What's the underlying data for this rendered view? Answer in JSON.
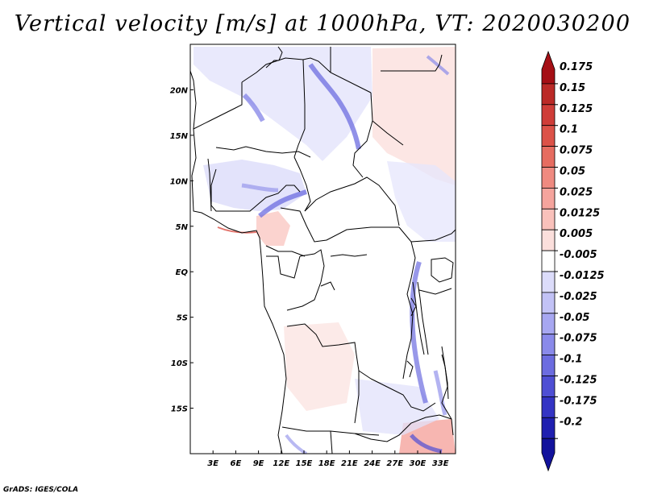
{
  "title": "Vertical velocity [m/s] at 1000hPa, VT: 2020030200",
  "credit": "GrADS: IGES/COLA",
  "map": {
    "lon_labels": [
      "3E",
      "6E",
      "9E",
      "12E",
      "15E",
      "18E",
      "21E",
      "24E",
      "27E",
      "30E",
      "33E"
    ],
    "lat_labels": [
      "20N",
      "15N",
      "10N",
      "5N",
      "EQ",
      "5S",
      "10S",
      "15S"
    ],
    "lon_values": [
      3,
      6,
      9,
      12,
      15,
      18,
      21,
      24,
      27,
      30,
      33
    ],
    "lat_values": [
      20,
      15,
      10,
      5,
      0,
      -5,
      -10,
      -15
    ],
    "lon_range": [
      0,
      35
    ],
    "lat_range": [
      -20,
      25
    ],
    "border_color": "#000000"
  },
  "chart_data": {
    "type": "heatmap",
    "title": "Vertical velocity [m/s] at 1000hPa, VT: 2020030200",
    "variable": "Vertical velocity",
    "units": "m/s",
    "level": "1000hPa",
    "valid_time": "2020030200",
    "colorbar": {
      "levels": [
        "0.175",
        "0.15",
        "0.125",
        "0.1",
        "0.075",
        "0.05",
        "0.025",
        "0.0125",
        "0.005",
        "-0.005",
        "-0.0125",
        "-0.025",
        "-0.05",
        "-0.075",
        "-0.1",
        "-0.125",
        "-0.175",
        "-0.2"
      ],
      "colors": [
        "#a50f15",
        "#bb2a27",
        "#cf3d38",
        "#dc5248",
        "#e66c60",
        "#ef8a80",
        "#f5a49d",
        "#f9c1bb",
        "#fbdfdc",
        "#ffffff",
        "#dcdcfa",
        "#c2c2f6",
        "#a7a7f1",
        "#8a8aea",
        "#6c6ce0",
        "#4f4fd4",
        "#3434c4",
        "#1f1fb0",
        "#12129c"
      ]
    }
  }
}
